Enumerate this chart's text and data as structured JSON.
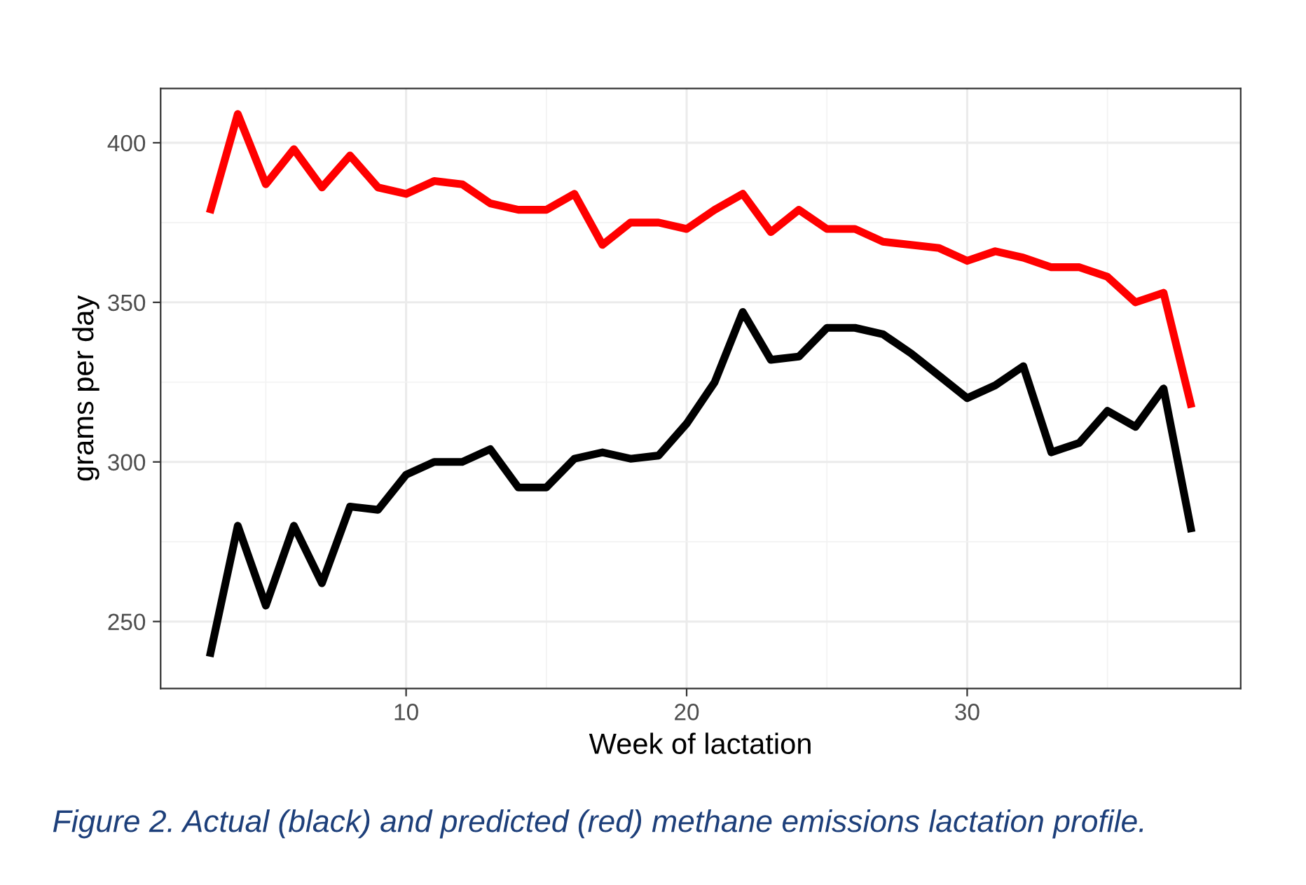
{
  "chart_data": {
    "type": "line",
    "xlabel": "Week of lactation",
    "ylabel": "grams per day",
    "x": [
      3,
      4,
      5,
      6,
      7,
      8,
      9,
      10,
      11,
      12,
      13,
      14,
      15,
      16,
      17,
      18,
      19,
      20,
      21,
      22,
      23,
      24,
      25,
      26,
      27,
      28,
      29,
      30,
      31,
      32,
      33,
      34,
      35,
      36,
      37,
      38
    ],
    "series": [
      {
        "color": "#ff0000",
        "values": [
          378,
          409,
          387,
          398,
          386,
          396,
          386,
          384,
          388,
          387,
          381,
          379,
          379,
          384,
          368,
          375,
          375,
          373,
          379,
          384,
          372,
          379,
          373,
          373,
          369,
          368,
          367,
          363,
          366,
          364,
          361,
          361,
          358,
          350,
          353,
          317
        ]
      },
      {
        "color": "#000000",
        "values": [
          239,
          280,
          255,
          280,
          262,
          286,
          285,
          296,
          300,
          300,
          304,
          292,
          292,
          301,
          303,
          301,
          302,
          312,
          325,
          347,
          332,
          333,
          342,
          342,
          340,
          334,
          327,
          320,
          324,
          330,
          303,
          306,
          316,
          311,
          323,
          278
        ]
      }
    ],
    "xlim": [
      1.25,
      39.75
    ],
    "ylim": [
      229,
      417
    ],
    "xticks": [
      {
        "value": 5,
        "label": null
      },
      10,
      {
        "value": 15,
        "label": null
      },
      20,
      {
        "value": 25,
        "label": null
      },
      30,
      {
        "value": 35,
        "label": null
      }
    ],
    "yticks": [
      250,
      {
        "value": 275,
        "label": null
      },
      300,
      {
        "value": 325,
        "label": null
      },
      350,
      {
        "value": 375,
        "label": null
      },
      400
    ],
    "grid": true,
    "line_style": "solid",
    "marker": "none",
    "annotations": [
      "Figure 2. Actual (black) and predicted (red) methane emissions lactation profile."
    ]
  }
}
